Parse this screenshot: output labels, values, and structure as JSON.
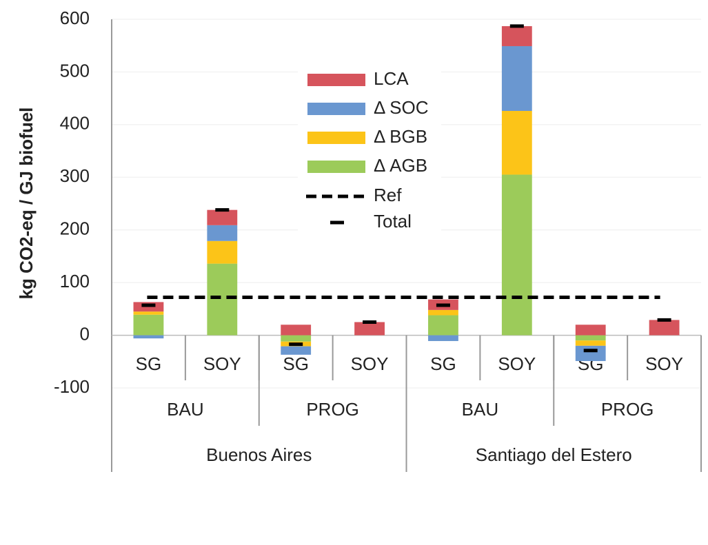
{
  "chart_data": {
    "type": "stacked-bar",
    "y_label": "kg CO2-eq / GJ biofuel",
    "categories": [
      "SG",
      "SOY",
      "SG",
      "SOY",
      "SG",
      "SOY",
      "SG",
      "SOY"
    ],
    "category_groups": [
      [
        "BAU",
        "PROG",
        "BAU",
        "PROG"
      ],
      [
        "Buenos Aires",
        "Santiago del Estero"
      ]
    ],
    "series": [
      {
        "name": "LCA",
        "color": "#d6545c",
        "values": [
          18,
          29,
          20,
          25,
          20,
          38,
          20,
          29
        ]
      },
      {
        "name": "Δ SOC",
        "color": "#6a97d0",
        "values": [
          -6,
          30,
          -16,
          0,
          -11,
          123,
          -29,
          0
        ]
      },
      {
        "name": "Δ BGB",
        "color": "#fcc418",
        "values": [
          6,
          43,
          -9,
          0,
          10,
          121,
          -10,
          0
        ]
      },
      {
        "name": "Δ AGB",
        "color": "#9ccb5a",
        "values": [
          39,
          136,
          -12,
          0,
          38,
          305,
          -10,
          0
        ]
      }
    ],
    "reference": {
      "name": "Ref",
      "value": 72
    },
    "totals": {
      "name": "Total",
      "values": [
        57,
        238,
        -17,
        25,
        57,
        587,
        -29,
        29
      ]
    },
    "ylim": [
      -100,
      600
    ],
    "yticks": [
      -100,
      0,
      100,
      200,
      300,
      400,
      500,
      600
    ],
    "grid": true
  }
}
